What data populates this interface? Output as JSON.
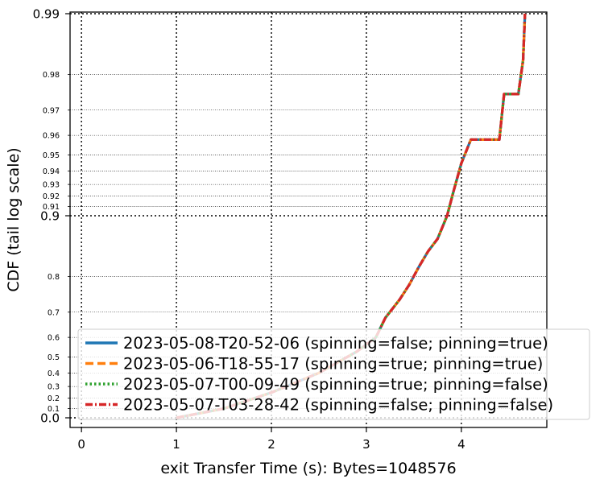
{
  "chart_data": {
    "type": "line",
    "xlabel": "exit Transfer Time (s): Bytes=1048576",
    "ylabel": "CDF (tail log scale)",
    "xlim": [
      -0.12,
      4.9
    ],
    "x_ticks": [
      0,
      1,
      2,
      3,
      4
    ],
    "x_tick_labels": [
      "0",
      "1",
      "2",
      "3",
      "4"
    ],
    "y_scale": "tail-log (-log10(1 - p))",
    "ylim": [
      0.0,
      0.99
    ],
    "y_major_ticks": [
      0.0,
      0.9,
      0.99
    ],
    "y_major_labels": [
      "0.0",
      "0.9",
      "0.99"
    ],
    "y_minor_ticks": [
      0.1,
      0.2,
      0.3,
      0.4,
      0.5,
      0.6,
      0.7,
      0.8,
      0.91,
      0.92,
      0.93,
      0.94,
      0.95,
      0.96,
      0.97,
      0.98
    ],
    "y_minor_labels": [
      "0.1",
      "0.2",
      "0.3",
      "0.4",
      "0.5",
      "0.6",
      "0.7",
      "0.8",
      "0.91",
      "0.92",
      "0.93",
      "0.94",
      "0.95",
      "0.96",
      "0.97",
      "0.98"
    ],
    "grid": true,
    "legend_position": "lower-right",
    "series": [
      {
        "name": "2023-05-08-T20-52-06 (spinning=false; pinning=true)",
        "color": "#1f77b4",
        "dash": "solid",
        "x": [
          1.0,
          1.5,
          2.0,
          2.5,
          2.9,
          3.1,
          3.2,
          3.35,
          3.45,
          3.55,
          3.65,
          3.75,
          3.85,
          3.92,
          4.0,
          4.1,
          4.4,
          4.45,
          4.6,
          4.65,
          4.67
        ],
        "y": [
          0.0,
          0.1,
          0.25,
          0.4,
          0.53,
          0.6,
          0.68,
          0.74,
          0.78,
          0.82,
          0.85,
          0.87,
          0.9,
          0.925,
          0.945,
          0.958,
          0.958,
          0.975,
          0.975,
          0.983,
          0.99
        ]
      },
      {
        "name": "2023-05-06-T18-55-17 (spinning=true; pinning=true)",
        "color": "#ff7f0e",
        "dash": "dashed",
        "x": [
          1.0,
          1.5,
          2.0,
          2.5,
          2.9,
          3.1,
          3.2,
          3.35,
          3.45,
          3.55,
          3.65,
          3.75,
          3.85,
          3.92,
          4.0,
          4.1,
          4.4,
          4.45,
          4.6,
          4.65,
          4.67
        ],
        "y": [
          0.0,
          0.1,
          0.25,
          0.4,
          0.53,
          0.6,
          0.68,
          0.74,
          0.78,
          0.82,
          0.85,
          0.87,
          0.9,
          0.925,
          0.945,
          0.958,
          0.958,
          0.975,
          0.975,
          0.983,
          0.99
        ]
      },
      {
        "name": "2023-05-07-T00-09-49 (spinning=true; pinning=false)",
        "color": "#2ca02c",
        "dash": "dotted",
        "x": [
          1.0,
          1.5,
          2.0,
          2.5,
          2.9,
          3.1,
          3.2,
          3.35,
          3.45,
          3.55,
          3.65,
          3.75,
          3.85,
          3.92,
          4.0,
          4.1,
          4.4,
          4.45,
          4.6,
          4.65,
          4.67
        ],
        "y": [
          0.0,
          0.1,
          0.25,
          0.4,
          0.53,
          0.6,
          0.68,
          0.74,
          0.78,
          0.82,
          0.85,
          0.87,
          0.9,
          0.925,
          0.945,
          0.958,
          0.958,
          0.975,
          0.975,
          0.983,
          0.99
        ]
      },
      {
        "name": "2023-05-07-T03-28-42 (spinning=false; pinning=false)",
        "color": "#d62728",
        "dash": "dashdot",
        "x": [
          1.0,
          1.5,
          2.0,
          2.5,
          2.9,
          3.1,
          3.2,
          3.35,
          3.45,
          3.55,
          3.65,
          3.75,
          3.85,
          3.92,
          4.0,
          4.1,
          4.4,
          4.45,
          4.6,
          4.65,
          4.67
        ],
        "y": [
          0.0,
          0.1,
          0.25,
          0.4,
          0.53,
          0.6,
          0.68,
          0.74,
          0.78,
          0.82,
          0.85,
          0.87,
          0.9,
          0.925,
          0.945,
          0.958,
          0.958,
          0.975,
          0.975,
          0.983,
          0.99
        ]
      }
    ]
  }
}
